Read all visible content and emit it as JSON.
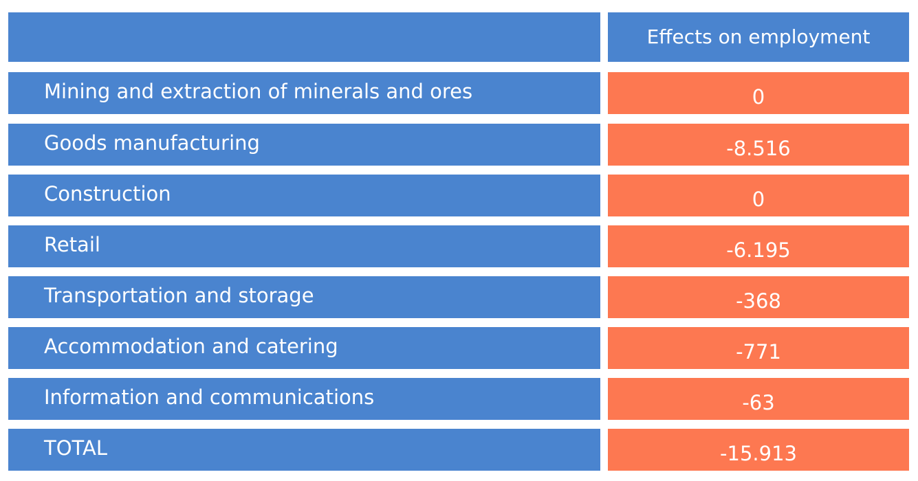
{
  "chart_data": {
    "type": "table",
    "columns": [
      "",
      "Effects on employment"
    ],
    "rows": [
      {
        "label": "Mining and extraction of minerals and ores",
        "value": "0"
      },
      {
        "label": "Goods manufacturing",
        "value": "-8.516"
      },
      {
        "label": "Construction",
        "value": "0"
      },
      {
        "label": "Retail",
        "value": "-6.195"
      },
      {
        "label": "Transportation and storage",
        "value": "-368"
      },
      {
        "label": "Accommodation and catering",
        "value": "-771"
      },
      {
        "label": "Information and communications",
        "value": "-63"
      },
      {
        "label": "TOTAL",
        "value": "-15.913"
      }
    ]
  },
  "colors": {
    "label_background": "#4a84cf",
    "value_background": "#fd7851",
    "text": "#ffffff"
  }
}
